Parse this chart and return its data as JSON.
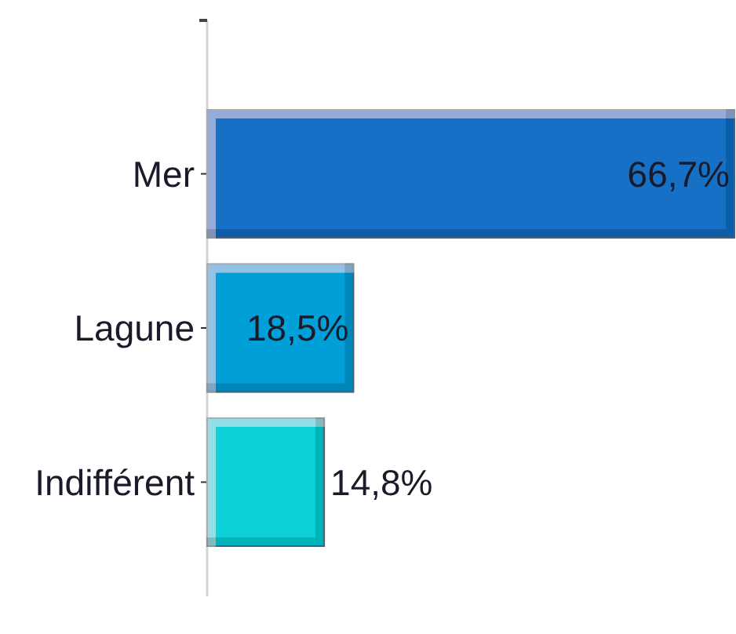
{
  "chart_data": {
    "type": "bar",
    "orientation": "horizontal",
    "categories": [
      "Mer",
      "Lagune",
      "Indifférent"
    ],
    "values": [
      66.7,
      18.5,
      14.8
    ],
    "colors": [
      "#126fc6",
      "#029fd8",
      "#0dd0d8"
    ],
    "value_labels": [
      "66,7%",
      "18,5%",
      "14,8%"
    ],
    "tick_labels": "y"
  }
}
